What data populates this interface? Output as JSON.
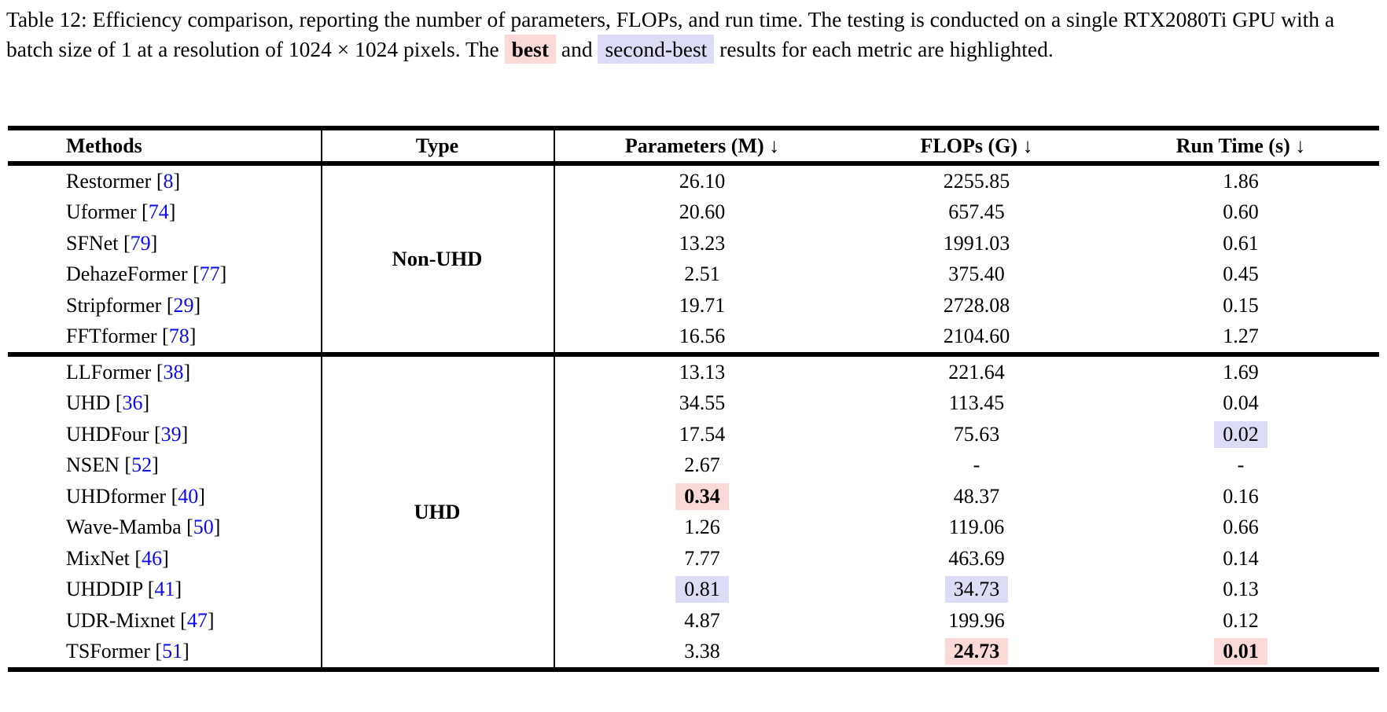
{
  "colors": {
    "best_bg": "#fbd9d6",
    "second_bg": "#dcdcf6",
    "cite": "#0b0bee"
  },
  "caption": {
    "segments": [
      {
        "text": "Table 12: Efficiency comparison, reporting the number of parameters, FLOPs, and run time. The testing is conducted on a single RTX2080Ti GPU with a batch size of 1 at a resolution of 1024 × 1024 pixels. The "
      },
      {
        "text": "best",
        "highlight": "best"
      },
      {
        "text": " and "
      },
      {
        "text": "second-best",
        "highlight": "second"
      },
      {
        "text": " results for each metric are highlighted."
      }
    ]
  },
  "table": {
    "columns": [
      "Methods",
      "Type",
      "Parameters (M) ↓",
      "FLOPs (G) ↓",
      "Run Time (s) ↓"
    ],
    "groups": [
      {
        "type_label": "Non-UHD",
        "rows": [
          {
            "method": "Restormer",
            "ref": "8",
            "params": "26.10",
            "flops": "2255.85",
            "runtime": "1.86"
          },
          {
            "method": "Uformer",
            "ref": "74",
            "params": "20.60",
            "flops": "657.45",
            "runtime": "0.60"
          },
          {
            "method": "SFNet",
            "ref": "79",
            "params": "13.23",
            "flops": "1991.03",
            "runtime": "0.61"
          },
          {
            "method": "DehazeFormer",
            "ref": "77",
            "params": "2.51",
            "flops": "375.40",
            "runtime": "0.45"
          },
          {
            "method": "Stripformer",
            "ref": "29",
            "params": "19.71",
            "flops": "2728.08",
            "runtime": "0.15"
          },
          {
            "method": "FFTformer",
            "ref": "78",
            "params": "16.56",
            "flops": "2104.60",
            "runtime": "1.27"
          }
        ]
      },
      {
        "type_label": "UHD",
        "rows": [
          {
            "method": "LLFormer",
            "ref": "38",
            "params": "13.13",
            "flops": "221.64",
            "runtime": "1.69"
          },
          {
            "method": "UHD",
            "ref": "36",
            "params": "34.55",
            "flops": "113.45",
            "runtime": "0.04"
          },
          {
            "method": "UHDFour",
            "ref": "39",
            "params": "17.54",
            "flops": "75.63",
            "runtime": "0.02",
            "runtime_hl": "second"
          },
          {
            "method": "NSEN",
            "ref": "52",
            "params": "2.67",
            "flops": "-",
            "runtime": "-"
          },
          {
            "method": "UHDformer",
            "ref": "40",
            "params": "0.34",
            "params_hl": "best",
            "flops": "48.37",
            "runtime": "0.16"
          },
          {
            "method": "Wave-Mamba",
            "ref": "50",
            "params": "1.26",
            "flops": "119.06",
            "runtime": "0.66"
          },
          {
            "method": "MixNet",
            "ref": "46",
            "params": "7.77",
            "flops": "463.69",
            "runtime": "0.14"
          },
          {
            "method": "UHDDIP",
            "ref": "41",
            "params": "0.81",
            "params_hl": "second",
            "flops": "34.73",
            "flops_hl": "second",
            "runtime": "0.13"
          },
          {
            "method": "UDR-Mixnet",
            "ref": "47",
            "params": "4.87",
            "flops": "199.96",
            "runtime": "0.12"
          },
          {
            "method": "TSFormer",
            "ref": "51",
            "params": "3.38",
            "flops": "24.73",
            "flops_hl": "best",
            "runtime": "0.01",
            "runtime_hl": "best"
          }
        ]
      }
    ]
  }
}
